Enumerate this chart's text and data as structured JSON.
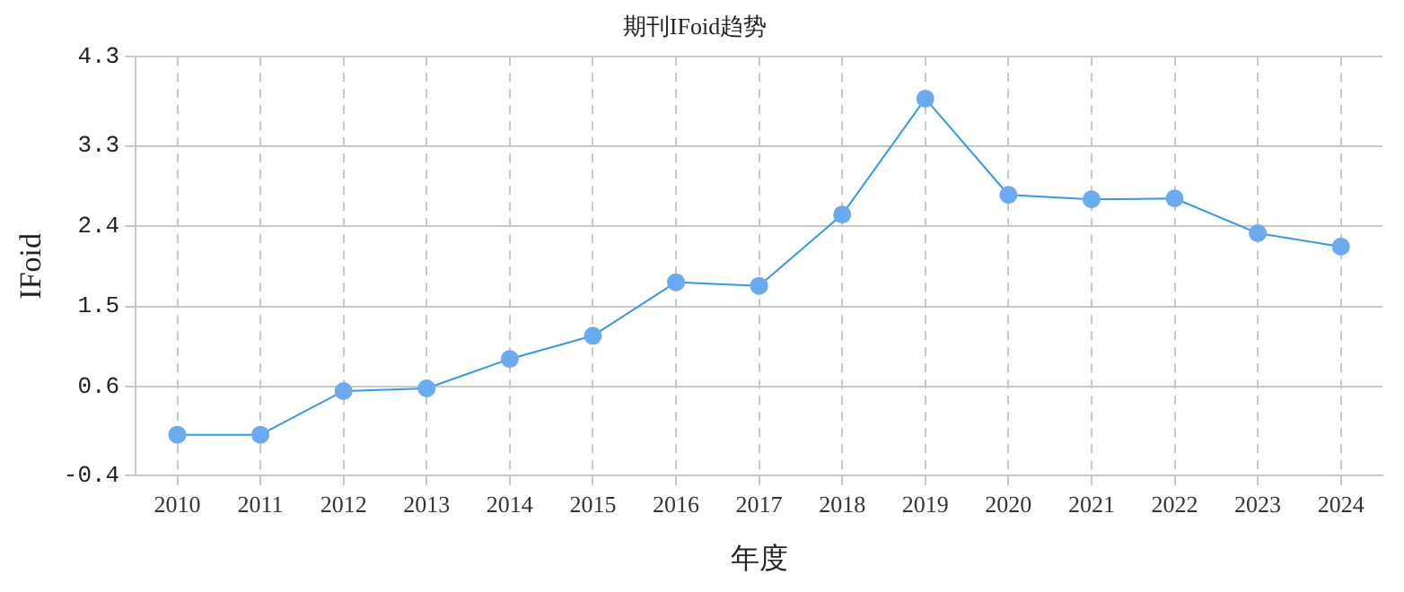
{
  "chart_data": {
    "type": "line",
    "title": "期刊IFoid趋势",
    "xlabel": "年度",
    "ylabel": "IFoid",
    "categories": [
      "2010",
      "2011",
      "2012",
      "2013",
      "2014",
      "2015",
      "2016",
      "2017",
      "2018",
      "2019",
      "2020",
      "2021",
      "2022",
      "2023",
      "2024"
    ],
    "series": [
      {
        "color": "#3399ee",
        "values": [
          0.06,
          0.06,
          0.55,
          0.58,
          0.91,
          1.17,
          1.77,
          1.73,
          2.53,
          3.83,
          2.75,
          2.7,
          2.71,
          2.32,
          2.17
        ]
      }
    ],
    "ylim": [
      -0.4,
      4.3
    ],
    "yticks": [
      -0.4,
      0.6,
      1.5,
      2.4,
      3.3,
      4.3
    ],
    "grid": true,
    "legend": false,
    "marker": "circle",
    "line_style": "solid"
  }
}
